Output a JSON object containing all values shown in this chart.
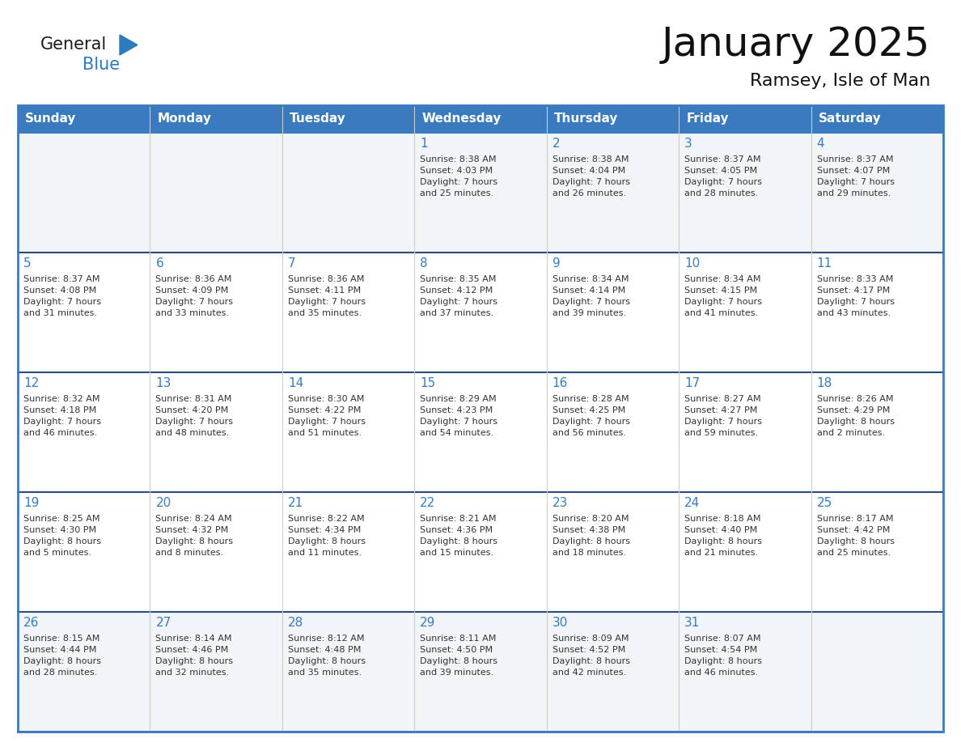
{
  "title": "January 2025",
  "subtitle": "Ramsey, Isle of Man",
  "days_of_week": [
    "Sunday",
    "Monday",
    "Tuesday",
    "Wednesday",
    "Thursday",
    "Friday",
    "Saturday"
  ],
  "header_bg": "#3a7abf",
  "header_text": "#ffffff",
  "cell_bg_light": "#f2f5f8",
  "cell_bg_white": "#ffffff",
  "row_sep_color": "#2e4a7a",
  "col_sep_color": "#cccccc",
  "outer_border_color": "#3a7abf",
  "day_num_color": "#3a7abf",
  "text_color": "#333333",
  "calendar_data": [
    [
      {
        "day": null,
        "text": ""
      },
      {
        "day": null,
        "text": ""
      },
      {
        "day": null,
        "text": ""
      },
      {
        "day": 1,
        "text": "Sunrise: 8:38 AM\nSunset: 4:03 PM\nDaylight: 7 hours\nand 25 minutes."
      },
      {
        "day": 2,
        "text": "Sunrise: 8:38 AM\nSunset: 4:04 PM\nDaylight: 7 hours\nand 26 minutes."
      },
      {
        "day": 3,
        "text": "Sunrise: 8:37 AM\nSunset: 4:05 PM\nDaylight: 7 hours\nand 28 minutes."
      },
      {
        "day": 4,
        "text": "Sunrise: 8:37 AM\nSunset: 4:07 PM\nDaylight: 7 hours\nand 29 minutes."
      }
    ],
    [
      {
        "day": 5,
        "text": "Sunrise: 8:37 AM\nSunset: 4:08 PM\nDaylight: 7 hours\nand 31 minutes."
      },
      {
        "day": 6,
        "text": "Sunrise: 8:36 AM\nSunset: 4:09 PM\nDaylight: 7 hours\nand 33 minutes."
      },
      {
        "day": 7,
        "text": "Sunrise: 8:36 AM\nSunset: 4:11 PM\nDaylight: 7 hours\nand 35 minutes."
      },
      {
        "day": 8,
        "text": "Sunrise: 8:35 AM\nSunset: 4:12 PM\nDaylight: 7 hours\nand 37 minutes."
      },
      {
        "day": 9,
        "text": "Sunrise: 8:34 AM\nSunset: 4:14 PM\nDaylight: 7 hours\nand 39 minutes."
      },
      {
        "day": 10,
        "text": "Sunrise: 8:34 AM\nSunset: 4:15 PM\nDaylight: 7 hours\nand 41 minutes."
      },
      {
        "day": 11,
        "text": "Sunrise: 8:33 AM\nSunset: 4:17 PM\nDaylight: 7 hours\nand 43 minutes."
      }
    ],
    [
      {
        "day": 12,
        "text": "Sunrise: 8:32 AM\nSunset: 4:18 PM\nDaylight: 7 hours\nand 46 minutes."
      },
      {
        "day": 13,
        "text": "Sunrise: 8:31 AM\nSunset: 4:20 PM\nDaylight: 7 hours\nand 48 minutes."
      },
      {
        "day": 14,
        "text": "Sunrise: 8:30 AM\nSunset: 4:22 PM\nDaylight: 7 hours\nand 51 minutes."
      },
      {
        "day": 15,
        "text": "Sunrise: 8:29 AM\nSunset: 4:23 PM\nDaylight: 7 hours\nand 54 minutes."
      },
      {
        "day": 16,
        "text": "Sunrise: 8:28 AM\nSunset: 4:25 PM\nDaylight: 7 hours\nand 56 minutes."
      },
      {
        "day": 17,
        "text": "Sunrise: 8:27 AM\nSunset: 4:27 PM\nDaylight: 7 hours\nand 59 minutes."
      },
      {
        "day": 18,
        "text": "Sunrise: 8:26 AM\nSunset: 4:29 PM\nDaylight: 8 hours\nand 2 minutes."
      }
    ],
    [
      {
        "day": 19,
        "text": "Sunrise: 8:25 AM\nSunset: 4:30 PM\nDaylight: 8 hours\nand 5 minutes."
      },
      {
        "day": 20,
        "text": "Sunrise: 8:24 AM\nSunset: 4:32 PM\nDaylight: 8 hours\nand 8 minutes."
      },
      {
        "day": 21,
        "text": "Sunrise: 8:22 AM\nSunset: 4:34 PM\nDaylight: 8 hours\nand 11 minutes."
      },
      {
        "day": 22,
        "text": "Sunrise: 8:21 AM\nSunset: 4:36 PM\nDaylight: 8 hours\nand 15 minutes."
      },
      {
        "day": 23,
        "text": "Sunrise: 8:20 AM\nSunset: 4:38 PM\nDaylight: 8 hours\nand 18 minutes."
      },
      {
        "day": 24,
        "text": "Sunrise: 8:18 AM\nSunset: 4:40 PM\nDaylight: 8 hours\nand 21 minutes."
      },
      {
        "day": 25,
        "text": "Sunrise: 8:17 AM\nSunset: 4:42 PM\nDaylight: 8 hours\nand 25 minutes."
      }
    ],
    [
      {
        "day": 26,
        "text": "Sunrise: 8:15 AM\nSunset: 4:44 PM\nDaylight: 8 hours\nand 28 minutes."
      },
      {
        "day": 27,
        "text": "Sunrise: 8:14 AM\nSunset: 4:46 PM\nDaylight: 8 hours\nand 32 minutes."
      },
      {
        "day": 28,
        "text": "Sunrise: 8:12 AM\nSunset: 4:48 PM\nDaylight: 8 hours\nand 35 minutes."
      },
      {
        "day": 29,
        "text": "Sunrise: 8:11 AM\nSunset: 4:50 PM\nDaylight: 8 hours\nand 39 minutes."
      },
      {
        "day": 30,
        "text": "Sunrise: 8:09 AM\nSunset: 4:52 PM\nDaylight: 8 hours\nand 42 minutes."
      },
      {
        "day": 31,
        "text": "Sunrise: 8:07 AM\nSunset: 4:54 PM\nDaylight: 8 hours\nand 46 minutes."
      },
      {
        "day": null,
        "text": ""
      }
    ]
  ],
  "logo_general_color": "#1a1a1a",
  "logo_blue_color": "#2e7abf",
  "logo_triangle_color": "#2e7abf",
  "title_fontsize": 36,
  "subtitle_fontsize": 16,
  "header_fontsize": 11,
  "day_num_fontsize": 11,
  "cell_text_fontsize": 8,
  "logo_fontsize": 15
}
